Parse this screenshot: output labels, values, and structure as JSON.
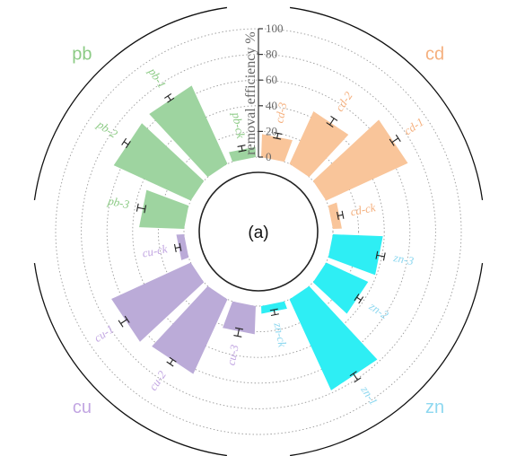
{
  "chart_data": {
    "type": "bar",
    "subtype": "circular-bar",
    "panel_label": "(a)",
    "ylabel": "removal efficiency %",
    "ylim": [
      0,
      100
    ],
    "yticks": [
      "0",
      "20",
      "40",
      "60",
      "80",
      "100"
    ],
    "grid": true,
    "groups": [
      {
        "name": "cd",
        "color": "#F9C59A",
        "label_color": "#F5B07E",
        "bars": [
          {
            "label": "cd-3",
            "value": 18,
            "error": 2
          },
          {
            "label": "cd-2",
            "value": 45,
            "error": 3
          },
          {
            "label": "cd-1",
            "value": 70,
            "error": 3
          },
          {
            "label": "cd-ck",
            "value": 7,
            "error": 2
          }
        ]
      },
      {
        "name": "zn",
        "color": "#2EEEF4",
        "label_color": "#8ED8F0",
        "bars": [
          {
            "label": "zn-3",
            "value": 39,
            "error": 3
          },
          {
            "label": "zn-2",
            "value": 36,
            "error": 2
          },
          {
            "label": "zn-1",
            "value": 78,
            "error": 3
          },
          {
            "label": "zn-ck",
            "value": 6,
            "error": 2
          }
        ]
      },
      {
        "name": "cu",
        "color": "#BBABD8",
        "label_color": "#C2A6E2",
        "bars": [
          {
            "label": "cu-3",
            "value": 22,
            "error": 3
          },
          {
            "label": "cu-2",
            "value": 64,
            "error": 2
          },
          {
            "label": "cu-1",
            "value": 68,
            "error": 3
          },
          {
            "label": "cu-ck",
            "value": 6,
            "error": 2
          }
        ]
      },
      {
        "name": "pb",
        "color": "#9ED4A0",
        "label_color": "#8CCB85",
        "bars": [
          {
            "label": "pb-3",
            "value": 35,
            "error": 3
          },
          {
            "label": "pb-2",
            "value": 66,
            "error": 2
          },
          {
            "label": "pb-1",
            "value": 67,
            "error": 2
          },
          {
            "label": "pb-ck",
            "value": 8,
            "error": 2
          }
        ]
      }
    ]
  }
}
